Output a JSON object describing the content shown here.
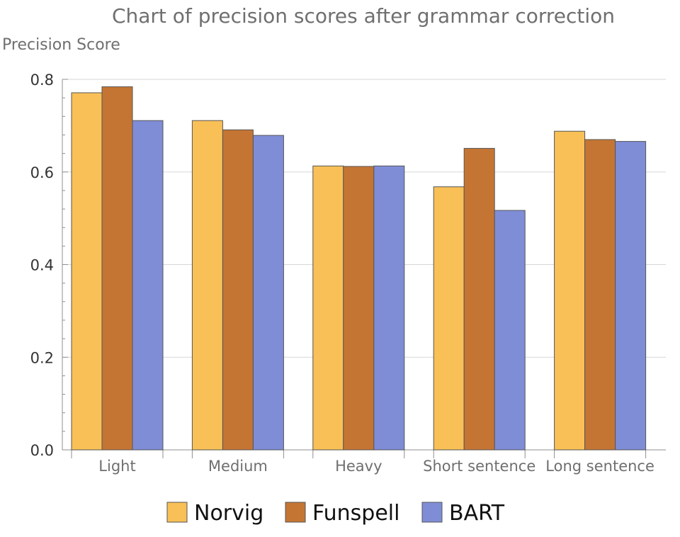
{
  "chart_data": {
    "type": "bar",
    "title": "Chart of precision scores after grammar correction",
    "ylabel": "Precision Score",
    "categories": [
      "Light",
      "Medium",
      "Heavy",
      "Short sentence",
      "Long sentence"
    ],
    "series": [
      {
        "name": "Norvig",
        "color": "#f8c057",
        "values": [
          0.771,
          0.711,
          0.613,
          0.568,
          0.688
        ]
      },
      {
        "name": "Funspell",
        "color": "#c57533",
        "values": [
          0.784,
          0.691,
          0.612,
          0.651,
          0.67
        ]
      },
      {
        "name": "BART",
        "color": "#7f8dd7",
        "values": [
          0.711,
          0.679,
          0.613,
          0.517,
          0.666
        ]
      }
    ],
    "ylim": [
      0.0,
      0.8
    ],
    "yticks": [
      "0.0",
      "0.2",
      "0.4",
      "0.6",
      "0.8"
    ],
    "grid": true,
    "legend_position": "bottom"
  }
}
